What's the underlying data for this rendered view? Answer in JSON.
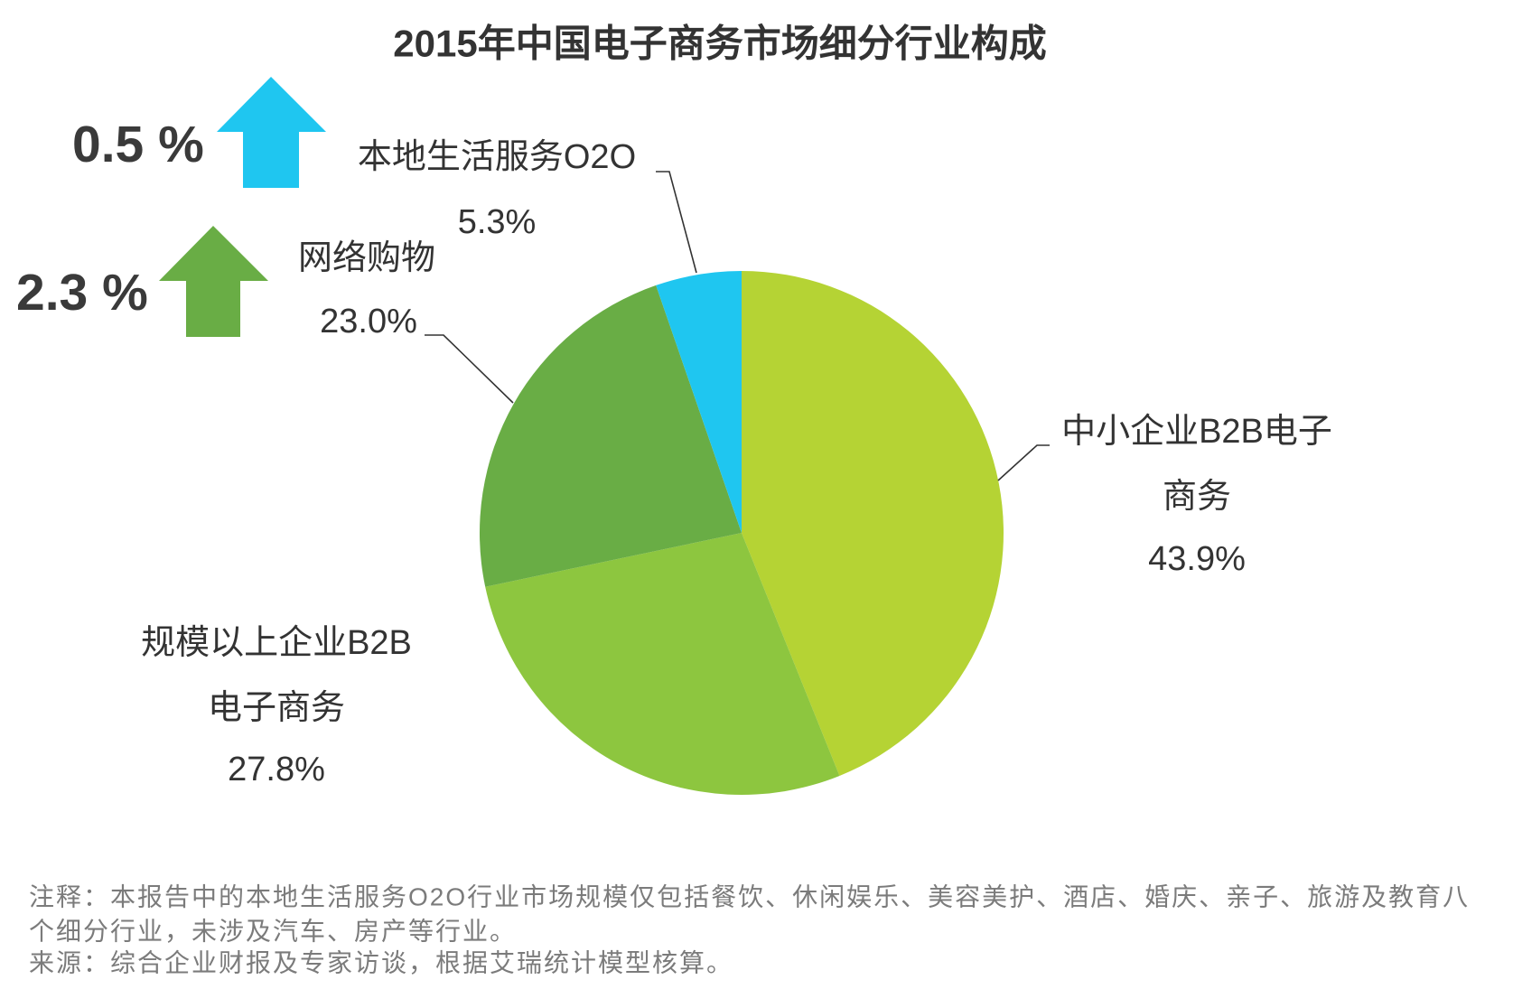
{
  "chart_data": {
    "type": "pie",
    "title": "2015年中国电子商务市场细分行业构成",
    "slices": [
      {
        "label_lines": [
          "中小企业B2B电子",
          "商务"
        ],
        "value": 43.9,
        "value_label": "43.9%",
        "color": "#b5d334"
      },
      {
        "label_lines": [
          "规模以上企业B2B",
          "电子商务"
        ],
        "value": 27.8,
        "value_label": "27.8%",
        "color": "#8dc63f"
      },
      {
        "label_lines": [
          "网络购物"
        ],
        "value": 23.0,
        "value_label": "23.0%",
        "color": "#69ad45"
      },
      {
        "label_lines": [
          "本地生活服务O2O"
        ],
        "value": 5.3,
        "value_label": "5.3%",
        "color": "#1fc6f0"
      }
    ]
  },
  "growth_indicators": [
    {
      "value_label": "0.5 %",
      "color": "#1fc6f0",
      "icon": "up-arrow-icon"
    },
    {
      "value_label": "2.3 %",
      "color": "#69ad45",
      "icon": "up-arrow-icon"
    }
  ],
  "notes": {
    "note_lines": [
      "注释：本报告中的本地生活服务O2O行业市场规模仅包括餐饮、休闲娱乐、美容美护、酒店、婚庆、亲子、旅游及教育八",
      "个细分行业，未涉及汽车、房产等行业。"
    ],
    "source": "来源：综合企业财报及专家访谈，根据艾瑞统计模型核算。"
  }
}
